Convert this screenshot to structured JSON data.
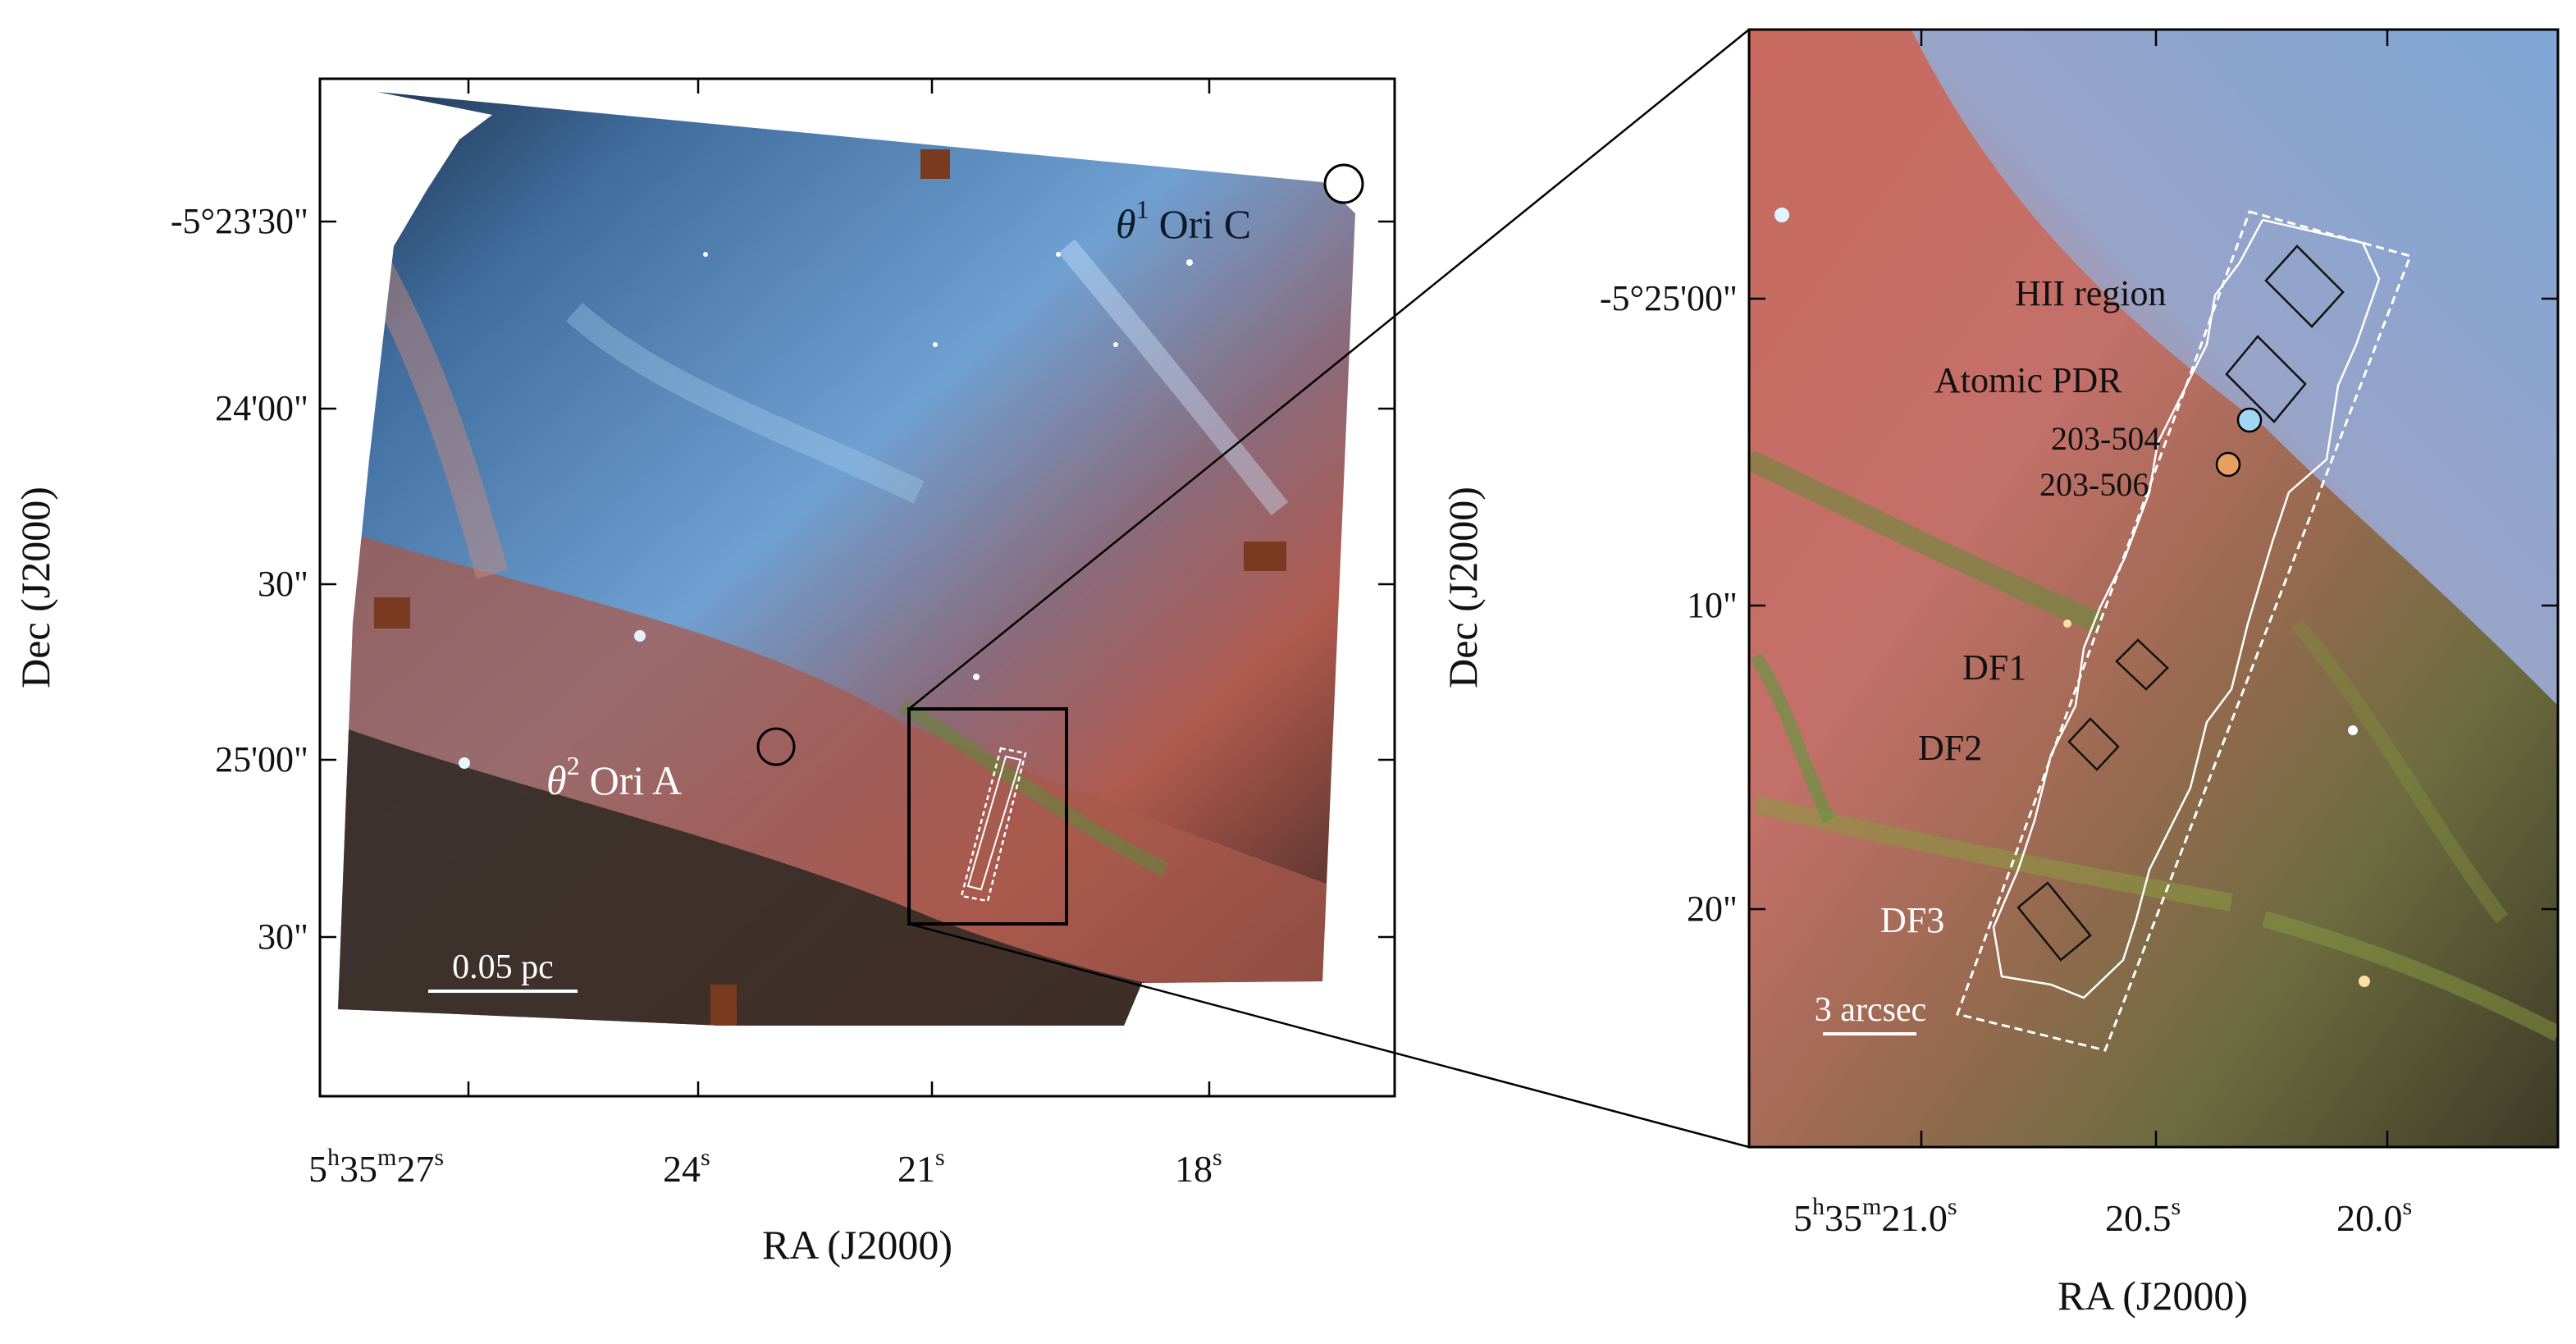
{
  "left_panel": {
    "x_ticks": [
      {
        "h": "5",
        "m": "35",
        "s": "27",
        "sup_h": "h",
        "sup_m": "m",
        "sup_s": "s"
      },
      {
        "s": "24",
        "sup_s": "s"
      },
      {
        "s": "21",
        "sup_s": "s"
      },
      {
        "s": "18",
        "sup_s": "s"
      }
    ],
    "y_ticks": [
      "-5°23'30\"",
      "24'00\"",
      "30\"",
      "25'00\"",
      "30\""
    ],
    "xlabel": "RA (J2000)",
    "ylabel": "Dec (J2000)",
    "labels": {
      "theta1": {
        "theta": "θ",
        "sup": "1",
        "name": "Ori C"
      },
      "theta2": {
        "theta": "θ",
        "sup": "2",
        "name": "Ori A"
      }
    },
    "scalebar": "0.05 pc"
  },
  "right_panel": {
    "x_ticks": [
      {
        "h": "5",
        "m": "35",
        "s": "21.0",
        "sup_h": "h",
        "sup_m": "m",
        "sup_s": "s"
      },
      {
        "s": "20.5",
        "sup_s": "s"
      },
      {
        "s": "20.0",
        "sup_s": "s"
      }
    ],
    "y_ticks": [
      "-5°25'00\"",
      "10\"",
      "20\""
    ],
    "xlabel": "RA (J2000)",
    "ylabel": "Dec (J2000)",
    "regions": [
      "HII region",
      "Atomic PDR",
      "203-504",
      "203-506",
      "DF1",
      "DF2",
      "DF3"
    ],
    "scalebar": "3 arcsec"
  },
  "colors": {
    "nebula_blue": "#6f9fd0",
    "nebula_red": "#c46a58",
    "filament_green": "#7e8a3c",
    "frame": "#000000"
  }
}
